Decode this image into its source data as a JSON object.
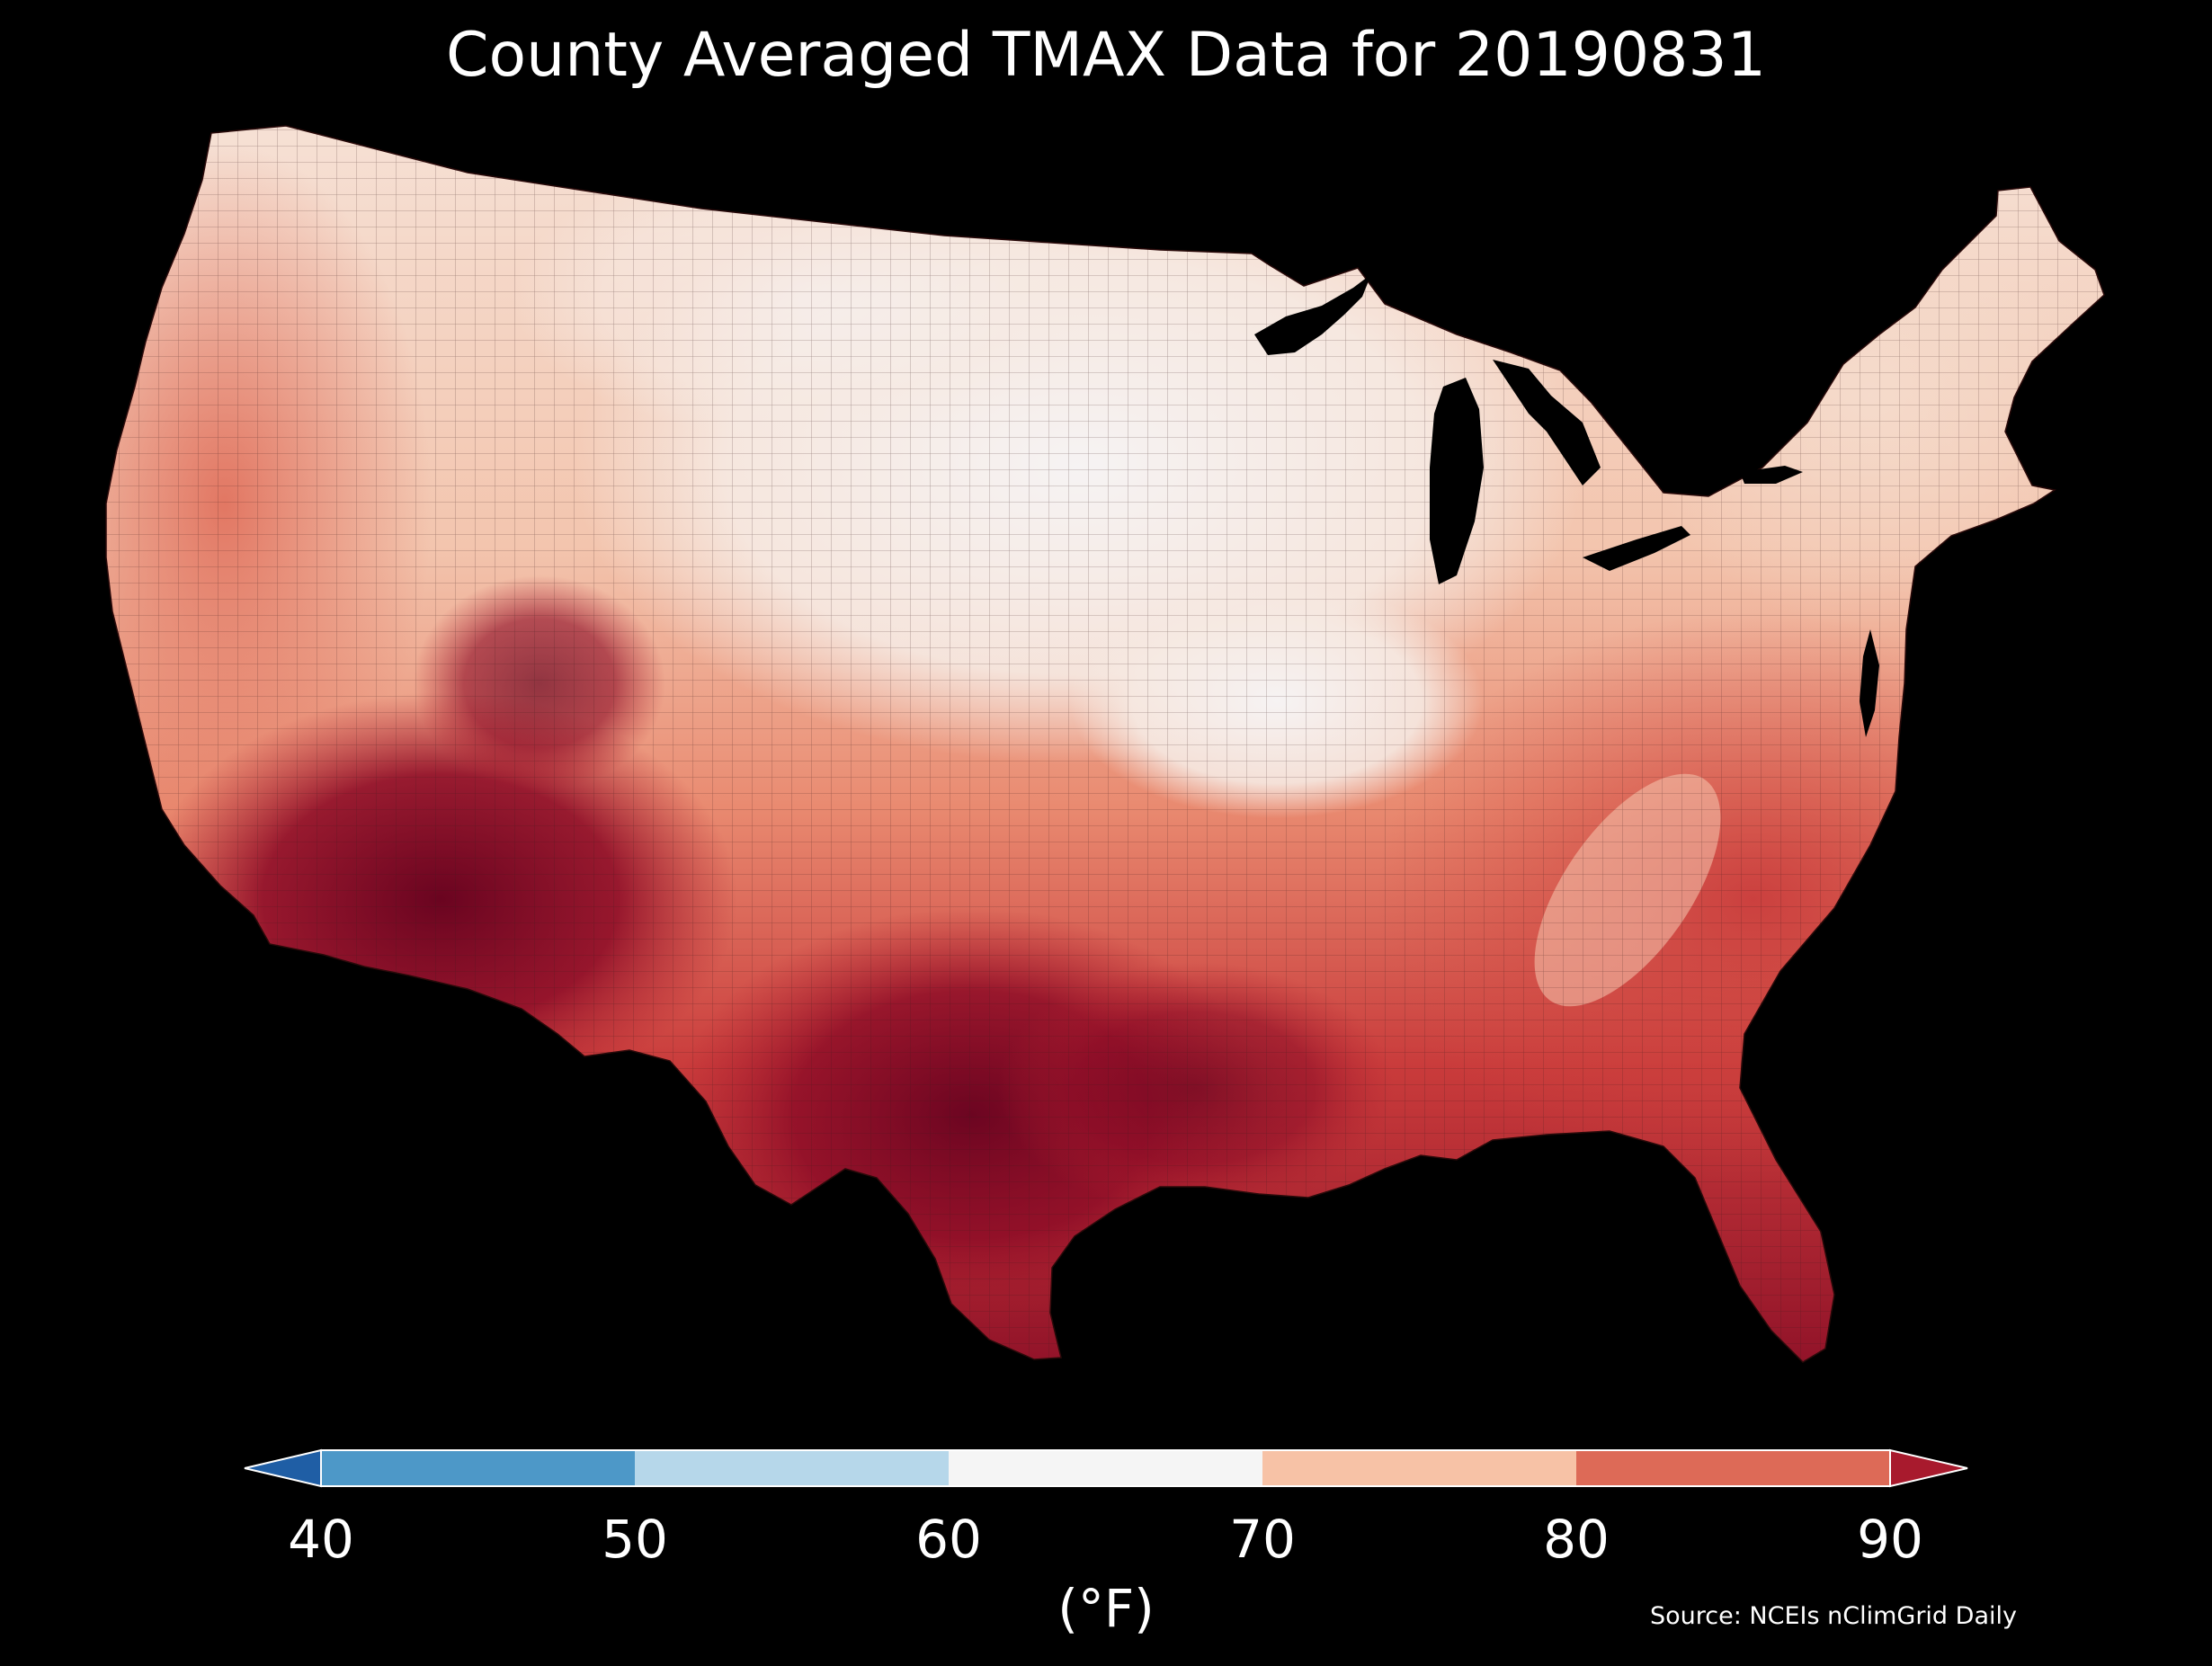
{
  "title": "County Averaged TMAX Data for 20190831",
  "colorbar": {
    "label": "(°F)",
    "ticks": [
      "40",
      "50",
      "60",
      "70",
      "80",
      "90"
    ],
    "bins": [
      {
        "range": "<40",
        "color": "#1f5ea5"
      },
      {
        "range": "40-50",
        "color": "#4d98c8"
      },
      {
        "range": "50-60",
        "color": "#b6d7ea"
      },
      {
        "range": "60-70",
        "color": "#f5f5f5"
      },
      {
        "range": "70-80",
        "color": "#f7c2a6"
      },
      {
        "range": "80-90",
        "color": "#dd6a57"
      },
      {
        "range": ">90",
        "color": "#a81a2d"
      }
    ],
    "extend": "both"
  },
  "source": "Source: NCEIs nClimGrid Daily",
  "map": {
    "region": "Contiguous United States",
    "variable": "TMAX",
    "units": "°F",
    "background": "#000000",
    "palette": {
      "cool_white": "#f4f2f2",
      "light_salmon": "#f8d2bd",
      "salmon": "#ee9b7e",
      "red": "#d95446",
      "dark_red": "#b0212f",
      "darkest": "#700520"
    }
  }
}
